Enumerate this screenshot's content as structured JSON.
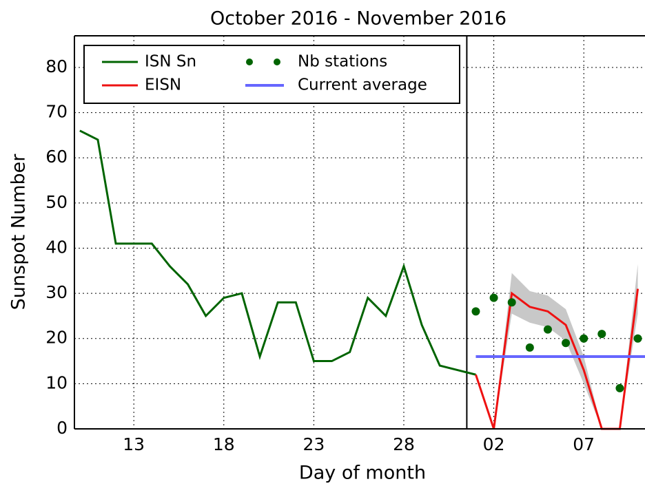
{
  "chart_data": {
    "type": "line",
    "title": "October 2016 - November 2016",
    "xlabel": "Day of month",
    "ylabel": "Sunspot Number",
    "xlim": [
      9.7,
      41.4
    ],
    "ylim": [
      0,
      87
    ],
    "xticks": [
      13,
      18,
      23,
      28,
      {
        "value": 33,
        "label": "02"
      },
      {
        "value": 38,
        "label": "07"
      }
    ],
    "yticks": [
      0,
      10,
      20,
      30,
      40,
      50,
      60,
      70,
      80
    ],
    "grid": true,
    "legend": "upper left",
    "divider_x": 31.5,
    "series": [
      {
        "name": "ISN Sn",
        "color": "#006400",
        "style": "line",
        "x": [
          10,
          11,
          12,
          13,
          14,
          15,
          16,
          17,
          18,
          19,
          20,
          21,
          22,
          23,
          24,
          25,
          26,
          27,
          28,
          29,
          30,
          31,
          32
        ],
        "values": [
          66,
          64,
          41,
          41,
          41,
          36,
          32,
          25,
          29,
          30,
          16,
          28,
          28,
          15,
          15,
          17,
          29,
          25,
          36,
          23,
          14,
          13,
          12
        ]
      },
      {
        "name": "EISN",
        "color": "#ee1111",
        "style": "line",
        "band_color": "#c8c8c8",
        "x": [
          32,
          33,
          34,
          35,
          36,
          37,
          38,
          39,
          40,
          41
        ],
        "values": [
          12,
          0,
          30,
          27,
          26,
          23,
          13,
          0,
          0,
          31
        ],
        "errors": [
          0,
          0,
          4.5,
          3.5,
          3.5,
          3.5,
          3,
          0,
          0,
          5.5
        ]
      },
      {
        "name": "Nb stations",
        "color": "#006400",
        "style": "dots",
        "x": [
          32,
          33,
          34,
          35,
          36,
          37,
          38,
          39,
          40,
          41
        ],
        "values": [
          26,
          29,
          28,
          18,
          22,
          19,
          20,
          21,
          9,
          20
        ]
      },
      {
        "name": "Current average",
        "color": "#6666ff",
        "style": "line",
        "x": [
          32,
          41.4
        ],
        "values": [
          16,
          16
        ]
      }
    ]
  }
}
